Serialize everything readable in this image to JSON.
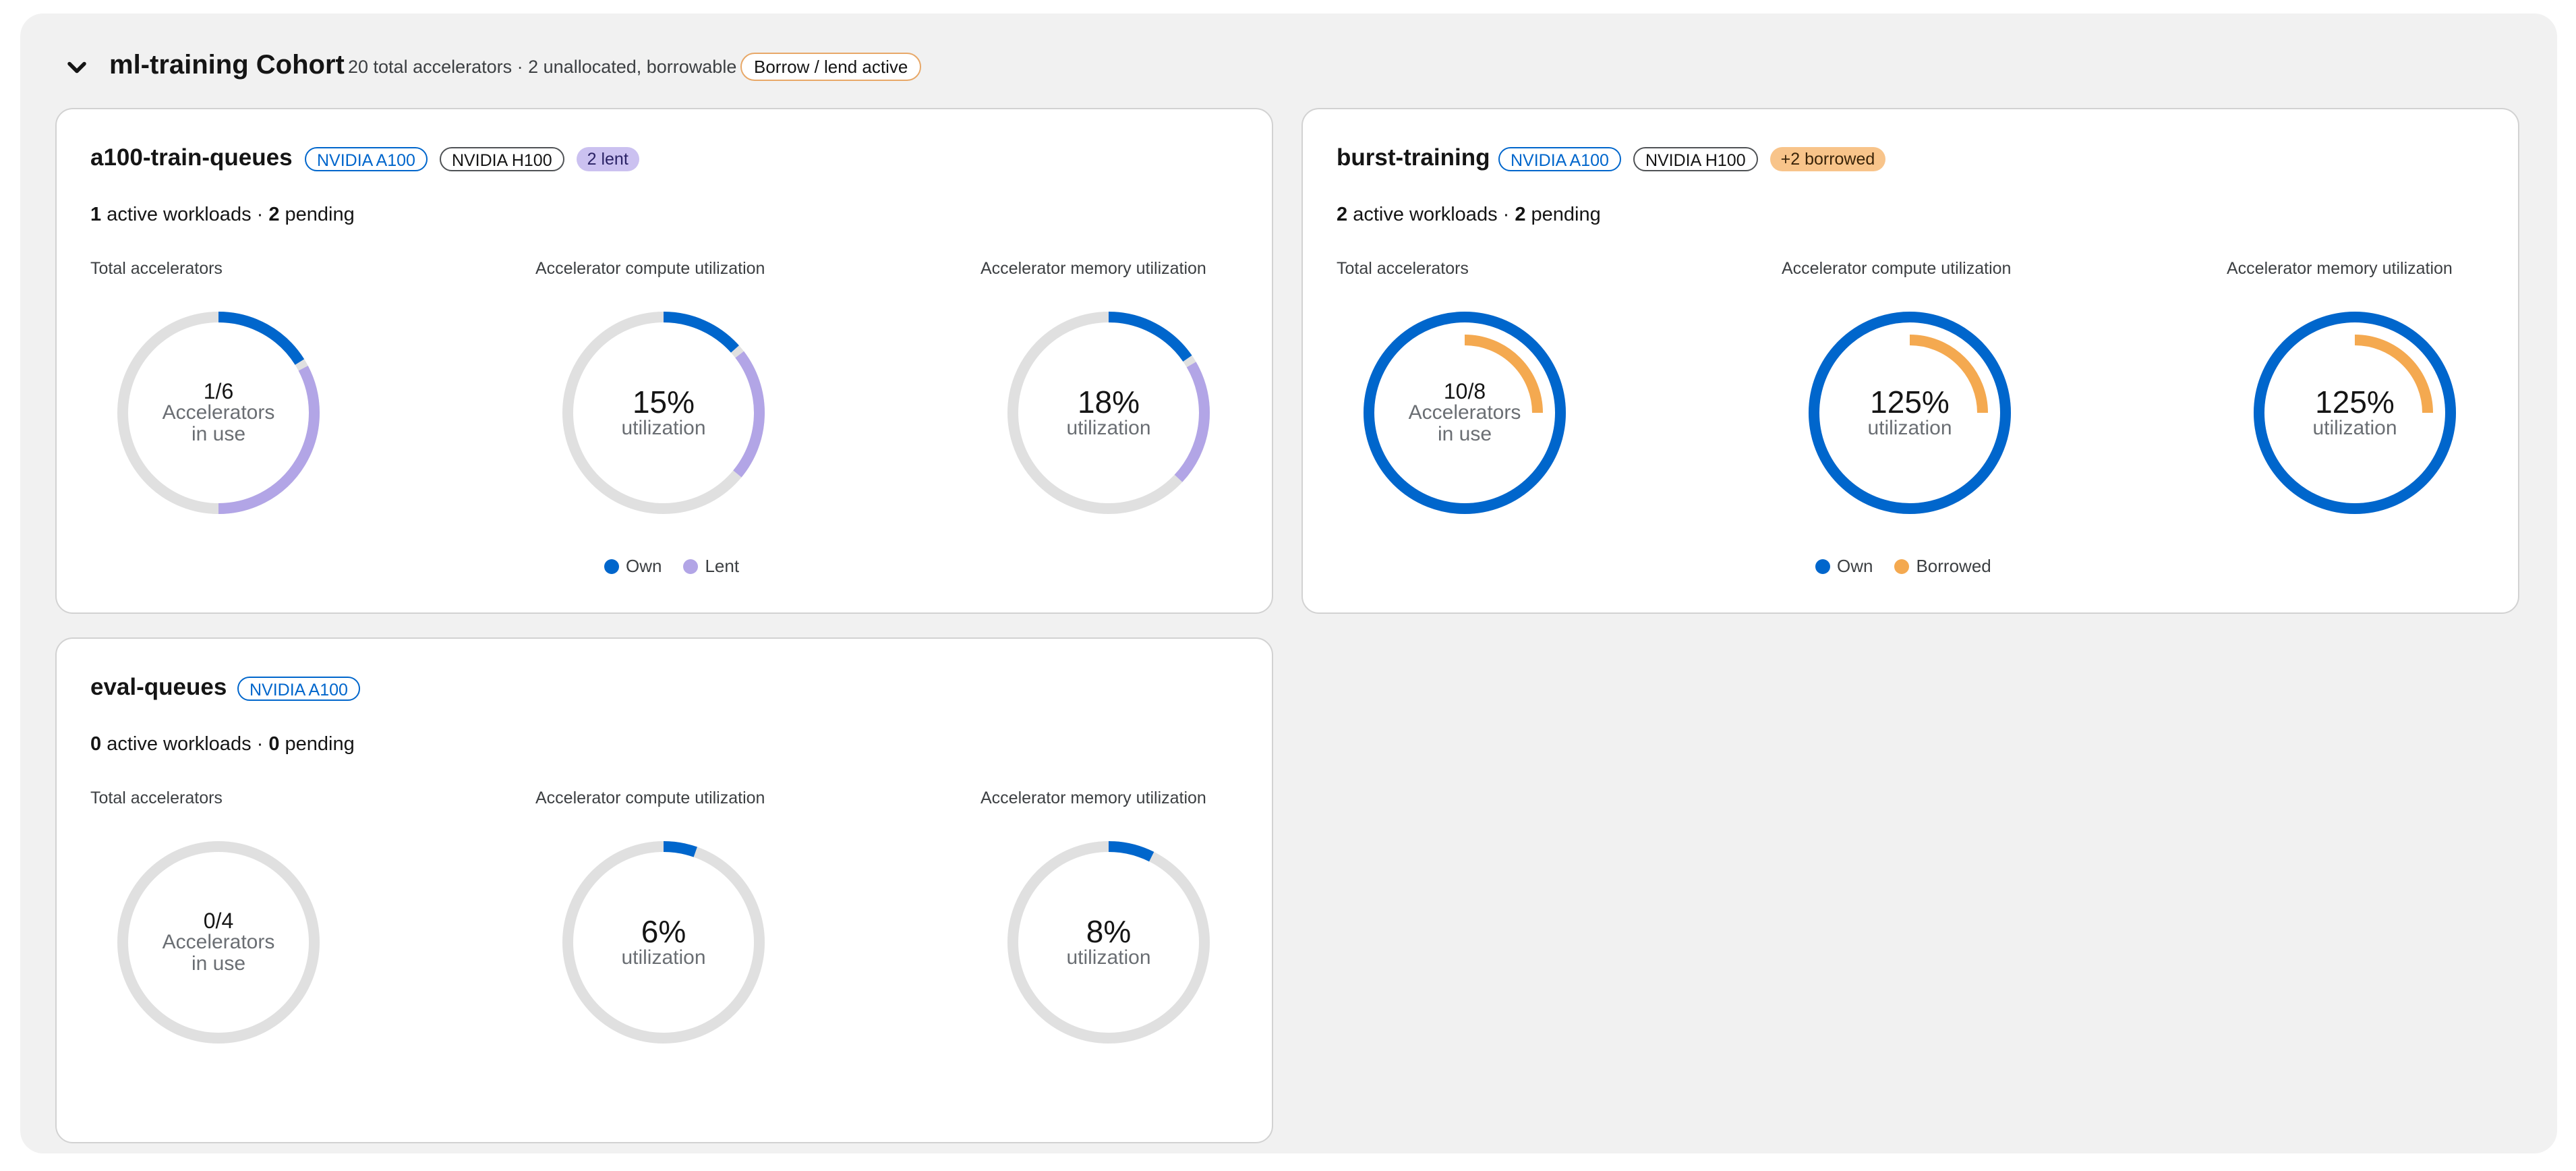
{
  "colors": {
    "own": "#0066cc",
    "lent": "#b2a5e6",
    "borrowed": "#f4a950",
    "track": "#e0e0e0"
  },
  "cohort": {
    "title": "ml-training Cohort",
    "summary": "20 total accelerators · 2 unallocated, borrowable",
    "status_badge": "Borrow / lend active",
    "expand_icon": "chevron-down-icon"
  },
  "queues": [
    {
      "name": "a100-train-queues",
      "badges": [
        {
          "text": "NVIDIA A100",
          "style": "blue"
        },
        {
          "text": "NVIDIA H100",
          "style": "gray"
        },
        {
          "text": "2 lent",
          "style": "purple"
        }
      ],
      "workloads": {
        "active": "1",
        "active_suffix": " active workloads · ",
        "pending": "2",
        "pending_suffix": " pending"
      },
      "metrics": [
        {
          "label": "Total accelerators",
          "value": "1/6",
          "line2": "Accelerators",
          "line3": "in use",
          "own": 0.167,
          "secondary": 0.333,
          "secondary_kind": "lent"
        },
        {
          "label": "Accelerator compute utilization",
          "value": "15%",
          "line2": "utilization",
          "own": 0.14,
          "secondary": 0.22,
          "secondary_kind": "lent"
        },
        {
          "label": "Accelerator memory utilization",
          "value": "18%",
          "line2": "utilization",
          "own": 0.16,
          "secondary": 0.21,
          "secondary_kind": "lent"
        }
      ],
      "legend": [
        {
          "label": "Own",
          "color": "#0066cc"
        },
        {
          "label": "Lent",
          "color": "#b2a5e6"
        }
      ]
    },
    {
      "name": "burst-training",
      "badges": [
        {
          "text": "NVIDIA A100",
          "style": "blue"
        },
        {
          "text": "NVIDIA H100",
          "style": "gray"
        },
        {
          "text": "+2 borrowed",
          "style": "orange"
        }
      ],
      "workloads": {
        "active": "2",
        "active_suffix": " active workloads · ",
        "pending": "2",
        "pending_suffix": " pending"
      },
      "metrics": [
        {
          "label": "Total accelerators",
          "value": "10/8",
          "line2": "Accelerators",
          "line3": "in use",
          "own": 1.0,
          "secondary": 0.25,
          "secondary_kind": "borrowed"
        },
        {
          "label": "Accelerator compute utilization",
          "value": "125%",
          "line2": "utilization",
          "own": 1.0,
          "secondary": 0.25,
          "secondary_kind": "borrowed"
        },
        {
          "label": "Accelerator memory utilization",
          "value": "125%",
          "line2": "utilization",
          "own": 1.0,
          "secondary": 0.25,
          "secondary_kind": "borrowed"
        }
      ],
      "legend": [
        {
          "label": "Own",
          "color": "#0066cc"
        },
        {
          "label": "Borrowed",
          "color": "#f4a950"
        }
      ]
    },
    {
      "name": "eval-queues",
      "badges": [
        {
          "text": "NVIDIA A100",
          "style": "blue"
        }
      ],
      "workloads": {
        "active": "0",
        "active_suffix": " active workloads · ",
        "pending": "0",
        "pending_suffix": " pending"
      },
      "metrics": [
        {
          "label": "Total accelerators",
          "value": "0/4",
          "line2": "Accelerators",
          "line3": "in use",
          "own": 0,
          "secondary": 0,
          "secondary_kind": "none"
        },
        {
          "label": "Accelerator compute utilization",
          "value": "6%",
          "line2": "utilization",
          "own": 0.06,
          "secondary": 0,
          "secondary_kind": "none"
        },
        {
          "label": "Accelerator memory utilization",
          "value": "8%",
          "line2": "utilization",
          "own": 0.08,
          "secondary": 0,
          "secondary_kind": "none"
        }
      ],
      "legend": []
    }
  ]
}
